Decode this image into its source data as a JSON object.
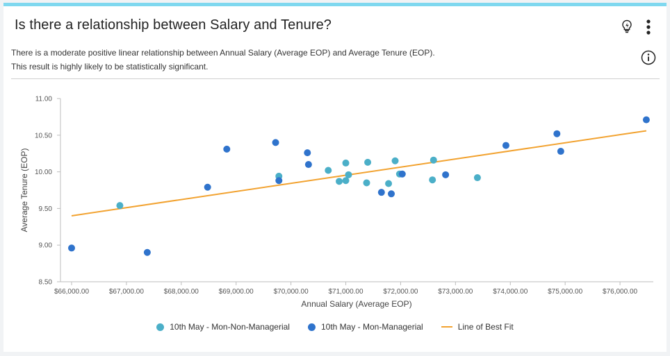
{
  "card": {
    "title": "Is there a relationship between Salary and Tenure?",
    "description_line1": "There is a moderate positive linear relationship between Annual Salary (Average EOP) and Average Tenure (EOP).",
    "description_line2": "This result is highly likely to be statistically significant.",
    "icons": [
      "lightbulb-icon",
      "more-vertical-icon",
      "info-icon"
    ]
  },
  "colors": {
    "accent_top_bar": "#7fd8ef",
    "series_non_managerial": "#4bafc8",
    "series_managerial": "#2f73cc",
    "best_fit": "#f2a22f",
    "text": "#333333"
  },
  "chart_data": {
    "type": "scatter",
    "title": "",
    "xlabel": "Annual Salary (Average EOP)",
    "ylabel": "Average Tenure (EOP)",
    "xlim": [
      66000,
      76500
    ],
    "ylim": [
      8.5,
      11.0
    ],
    "x_ticks": [
      66000,
      67000,
      68000,
      69000,
      70000,
      71000,
      72000,
      73000,
      74000,
      75000,
      76000
    ],
    "x_tick_labels": [
      "$66,000.00",
      "$67,000.00",
      "$68,000.00",
      "$69,000.00",
      "$70,000.00",
      "$71,000.00",
      "$72,000.00",
      "$73,000.00",
      "$74,000.00",
      "$75,000.00",
      "$76,000.00"
    ],
    "y_ticks": [
      8.5,
      9.0,
      9.5,
      10.0,
      10.5,
      11.0
    ],
    "y_tick_labels": [
      "8.50",
      "9.00",
      "9.50",
      "10.00",
      "10.50",
      "11.00"
    ],
    "grid": false,
    "legend_position": "bottom",
    "series": [
      {
        "name": "10th May - Mon-Non-Managerial",
        "color": "#4bafc8",
        "points": [
          [
            66880,
            9.54
          ],
          [
            69780,
            9.94
          ],
          [
            70680,
            10.02
          ],
          [
            70880,
            9.87
          ],
          [
            71000,
            10.12
          ],
          [
            71000,
            9.88
          ],
          [
            71050,
            9.96
          ],
          [
            71380,
            9.85
          ],
          [
            71400,
            10.13
          ],
          [
            71780,
            9.84
          ],
          [
            71900,
            10.15
          ],
          [
            71980,
            9.97
          ],
          [
            72580,
            9.89
          ],
          [
            72600,
            10.16
          ],
          [
            73400,
            9.92
          ]
        ]
      },
      {
        "name": "10th May - Mon-Managerial",
        "color": "#2f73cc",
        "points": [
          [
            66000,
            8.96
          ],
          [
            67380,
            8.9
          ],
          [
            68480,
            9.79
          ],
          [
            68830,
            10.31
          ],
          [
            69720,
            10.4
          ],
          [
            69780,
            9.88
          ],
          [
            70300,
            10.26
          ],
          [
            70320,
            10.1
          ],
          [
            71650,
            9.72
          ],
          [
            71830,
            9.7
          ],
          [
            72030,
            9.97
          ],
          [
            72820,
            9.96
          ],
          [
            73920,
            10.36
          ],
          [
            74850,
            10.52
          ],
          [
            74920,
            10.28
          ],
          [
            76480,
            10.71
          ]
        ]
      }
    ],
    "best_fit": {
      "name": "Line of Best Fit",
      "color": "#f2a22f",
      "x": [
        66000,
        76480
      ],
      "y": [
        9.4,
        10.56
      ]
    }
  }
}
